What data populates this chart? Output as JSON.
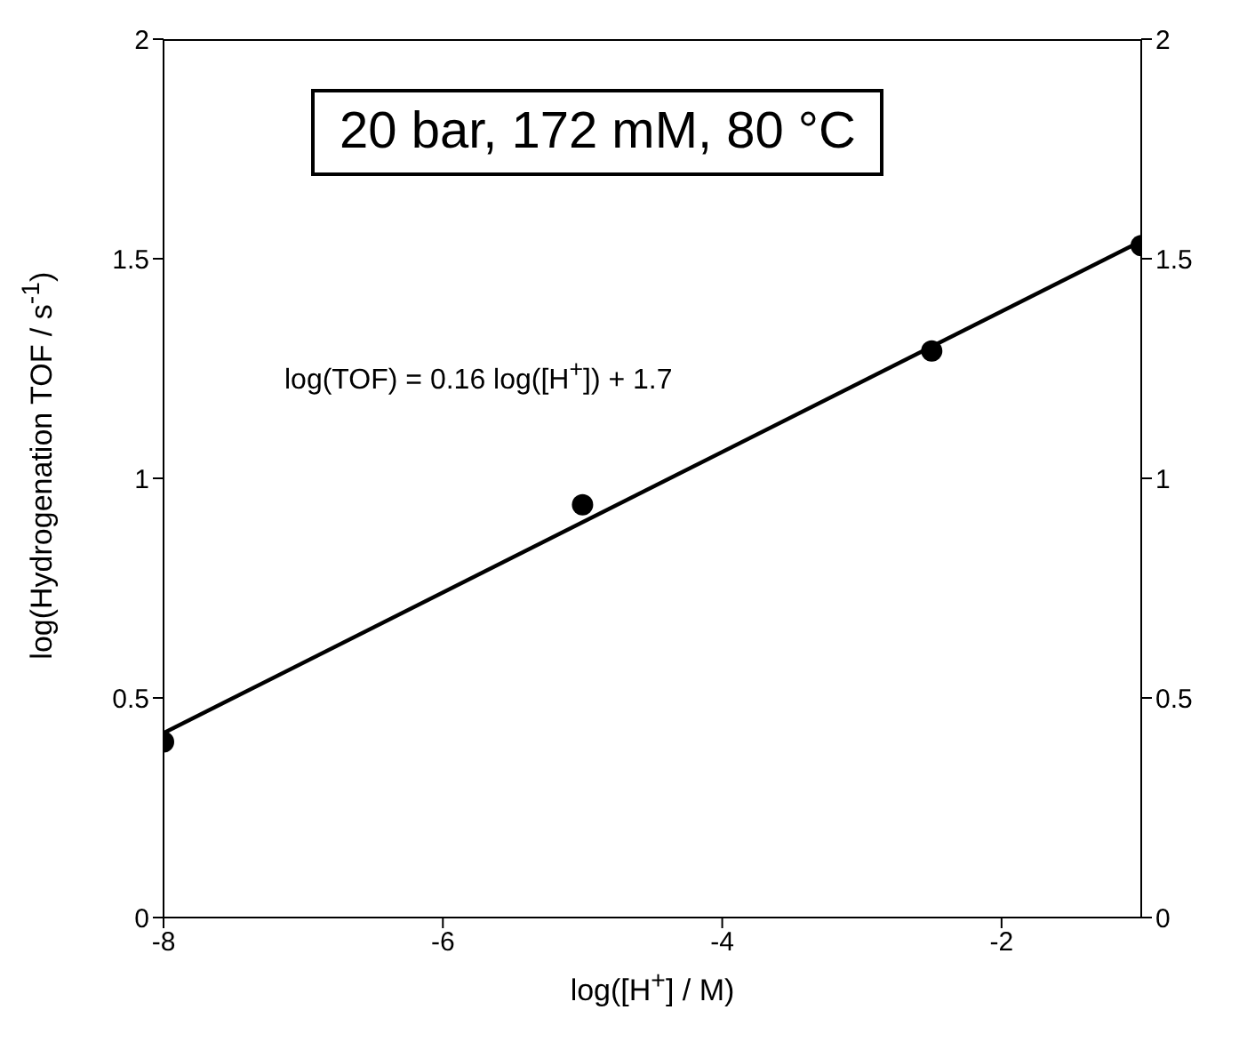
{
  "chart_data": {
    "type": "scatter",
    "xlabel": "log([H$^{+}$] / M)",
    "ylabel": "log(Hydrogenation TOF / s$^{-1}$)",
    "xlim": [
      -8,
      -1
    ],
    "xticks": [
      -8,
      -6,
      -4,
      -2
    ],
    "ylim": [
      0,
      2
    ],
    "yticks": [
      0,
      0.5,
      1,
      1.5,
      2
    ],
    "y2lim": [
      0,
      2
    ],
    "y2ticks": [
      0,
      0.5,
      1,
      1.5,
      2
    ],
    "grid": false,
    "legend": false,
    "series": [
      {
        "color": "#000000",
        "marker": "circle",
        "x": [
          -8,
          -5,
          -2.5,
          -1
        ],
        "values": [
          0.4,
          0.94,
          1.29,
          1.53
        ]
      },
      {
        "type": "line",
        "color": "#000000",
        "line_style": "solid",
        "marker": "none",
        "x": [
          -8,
          -1
        ],
        "values": [
          0.42,
          1.54
        ]
      }
    ],
    "annotations": [
      "20 bar, 172 mM, 80 °C",
      "log(TOF) = 0.16 log([H$^{+}$]) + 1.7"
    ]
  }
}
